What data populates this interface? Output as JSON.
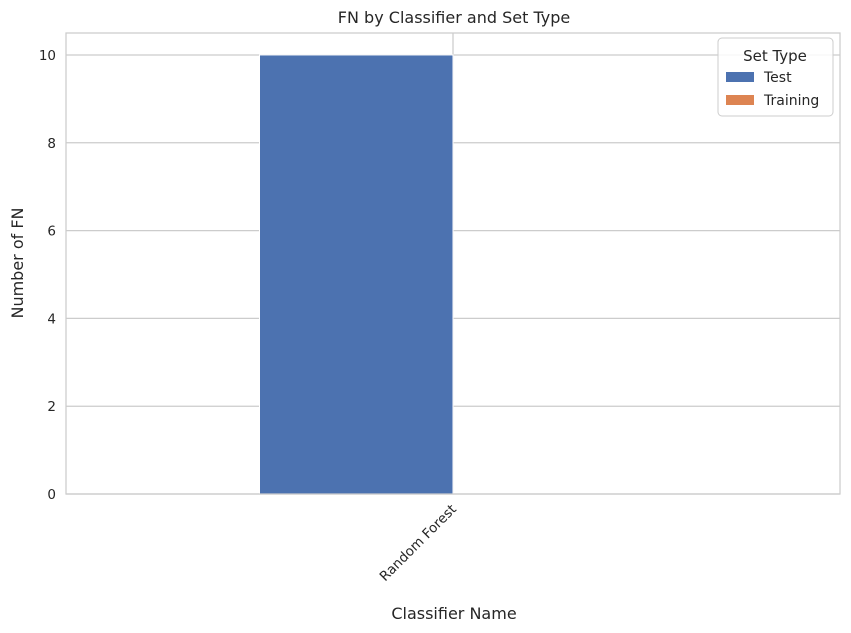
{
  "chart_data": {
    "type": "bar",
    "title": "FN by Classifier and Set Type",
    "xlabel": "Classifier Name",
    "ylabel": "Number of FN",
    "categories": [
      "Random Forest"
    ],
    "series": [
      {
        "name": "Test",
        "values": [
          10
        ],
        "color": "#4c72b0"
      },
      {
        "name": "Training",
        "values": [
          0
        ],
        "color": "#dd8452"
      }
    ],
    "ylim": [
      0,
      10.5
    ],
    "yticks": [
      0,
      2,
      4,
      6,
      8,
      10
    ],
    "grid": true,
    "legend": {
      "title": "Set Type",
      "position": "top-right"
    },
    "xtick_rotation": -45
  }
}
